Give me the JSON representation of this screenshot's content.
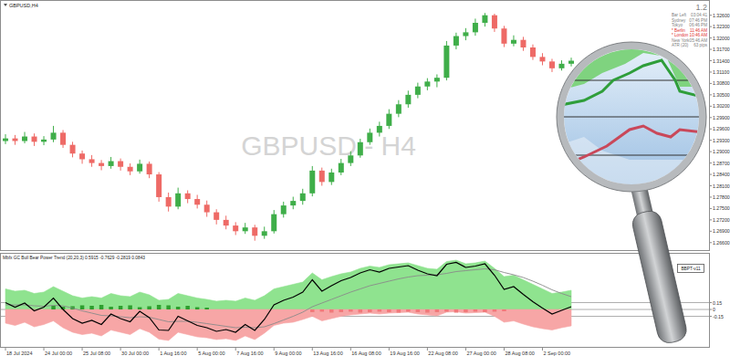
{
  "chart_data": [
    {
      "type": "candlestick",
      "title": "GBPUSD,H4",
      "subtitle": "GBPUSD - H4",
      "categories": [
        "18 Jul 2024",
        null,
        null,
        null,
        "24 Jul 00:00",
        null,
        null,
        null,
        "25 Jul 08:00",
        null,
        null,
        null,
        "30 Jul 00:00",
        null,
        null,
        null,
        "1 Aug 16:00",
        null,
        null,
        null,
        "5 Aug 00:00",
        null,
        null,
        null,
        "7 Aug 16:00",
        null,
        null,
        null,
        "9 Aug 00:00",
        null,
        null,
        null,
        "13 Aug 16:00",
        null,
        null,
        null,
        "16 Aug 08:00",
        null,
        null,
        null,
        "19 Aug 16:00",
        null,
        null,
        null,
        "22 Aug 08:00",
        null,
        null,
        null,
        "27 Aug 00:00",
        null,
        null,
        null,
        "28 Aug 08:00",
        null,
        null,
        null,
        "2 Sep 00:00",
        null,
        null,
        null
      ],
      "open": [
        1.2928,
        1.2935,
        1.2928,
        1.294,
        1.2926,
        1.2932,
        1.295,
        1.2918,
        1.2895,
        1.288,
        1.287,
        1.2862,
        1.2875,
        1.286,
        1.2848,
        1.2868,
        1.284,
        1.278,
        1.2755,
        1.279,
        1.2775,
        1.276,
        1.274,
        1.272,
        1.2705,
        1.269,
        1.27,
        1.2678,
        1.269,
        1.2735,
        1.2758,
        1.277,
        1.279,
        1.285,
        1.282,
        1.2845,
        1.287,
        1.289,
        1.2925,
        1.295,
        1.2968,
        1.3,
        1.3025,
        1.305,
        1.3072,
        1.3085,
        1.3095,
        1.318,
        1.3205,
        1.3215,
        1.324,
        1.326,
        1.3225,
        1.3185,
        1.3195,
        1.3175,
        1.315,
        1.3138,
        1.312,
        1.3132
      ],
      "high": [
        1.2946,
        1.2944,
        1.2952,
        1.2948,
        1.2941,
        1.2968,
        1.2957,
        1.2926,
        1.2903,
        1.2891,
        1.2878,
        1.2886,
        1.2882,
        1.2869,
        1.2879,
        1.2874,
        1.2846,
        1.2792,
        1.2805,
        1.2798,
        1.2786,
        1.2771,
        1.2748,
        1.2731,
        1.2714,
        1.2712,
        1.2707,
        1.2702,
        1.2746,
        1.2768,
        1.2781,
        1.2802,
        1.2862,
        1.2858,
        1.2855,
        1.2881,
        1.2901,
        1.2934,
        1.2961,
        1.2979,
        1.3012,
        1.3036,
        1.3061,
        1.3082,
        1.3094,
        1.3104,
        1.3192,
        1.3214,
        1.3226,
        1.3251,
        1.3266,
        1.3264,
        1.3232,
        1.3207,
        1.3203,
        1.3183,
        1.316,
        1.3145,
        1.3141,
        1.3148
      ],
      "low": [
        1.292,
        1.2918,
        1.2922,
        1.2915,
        1.2917,
        1.2925,
        1.291,
        1.2885,
        1.2868,
        1.286,
        1.2851,
        1.2855,
        1.285,
        1.2838,
        1.2842,
        1.283,
        1.2768,
        1.2742,
        1.2748,
        1.2764,
        1.275,
        1.2728,
        1.2708,
        1.2695,
        1.268,
        1.2683,
        1.2665,
        1.267,
        1.2684,
        1.2726,
        1.2748,
        1.276,
        1.2782,
        1.281,
        1.2812,
        1.2838,
        1.2862,
        1.2884,
        1.2918,
        1.294,
        1.296,
        1.2991,
        1.3016,
        1.3041,
        1.3062,
        1.307,
        1.3088,
        1.317,
        1.3194,
        1.3206,
        1.323,
        1.3216,
        1.3176,
        1.3178,
        1.3166,
        1.3142,
        1.3128,
        1.311,
        1.3114,
        1.3125
      ],
      "close": [
        1.2935,
        1.2928,
        1.294,
        1.2926,
        1.2932,
        1.295,
        1.2918,
        1.2895,
        1.288,
        1.287,
        1.2862,
        1.2875,
        1.286,
        1.2848,
        1.2868,
        1.284,
        1.278,
        1.2755,
        1.279,
        1.2775,
        1.276,
        1.274,
        1.272,
        1.2705,
        1.269,
        1.27,
        1.2678,
        1.269,
        1.2735,
        1.2758,
        1.277,
        1.279,
        1.285,
        1.282,
        1.2845,
        1.287,
        1.289,
        1.2925,
        1.295,
        1.2968,
        1.3,
        1.3025,
        1.305,
        1.3072,
        1.3085,
        1.3095,
        1.318,
        1.3205,
        1.3215,
        1.324,
        1.326,
        1.3225,
        1.3185,
        1.3195,
        1.3175,
        1.315,
        1.3138,
        1.312,
        1.3132,
        1.314
      ],
      "ylim": [
        1.2645,
        1.3293
      ],
      "yticks": [
        {
          "value": 1.266,
          "label": "1.26600"
        },
        {
          "value": 1.269,
          "label": "1.26900"
        },
        {
          "value": 1.272,
          "label": "1.27200"
        },
        {
          "value": 1.275,
          "label": "1.27500"
        },
        {
          "value": 1.278,
          "label": "1.27800"
        },
        {
          "value": 1.281,
          "label": "1.28100"
        },
        {
          "value": 1.284,
          "label": "1.28400"
        },
        {
          "value": 1.287,
          "label": "1.28700"
        },
        {
          "value": 1.29,
          "label": "1.29000"
        },
        {
          "value": 1.293,
          "label": "1.29300"
        },
        {
          "value": 1.296,
          "label": "1.29600"
        },
        {
          "value": 1.299,
          "label": "1.29900"
        },
        {
          "value": 1.302,
          "label": "1.30200"
        },
        {
          "value": 1.305,
          "label": "1.30500"
        },
        {
          "value": 1.308,
          "label": "1.30800"
        },
        {
          "value": 1.311,
          "label": "1.31100"
        },
        {
          "value": 1.314,
          "label": "1.31400"
        },
        {
          "value": 1.317,
          "label": "1.31700"
        },
        {
          "value": 1.32,
          "label": "1.32000"
        },
        {
          "value": 1.323,
          "label": "1.32300"
        },
        {
          "value": 1.326,
          "label": "1.32600"
        }
      ]
    },
    {
      "type": "line",
      "title": "Mbfx GC Bull Bear Power Trend (20,20,3) 0.5915 -0.7629 -0.2819 0.0843",
      "ylim": [
        -0.8,
        1.2
      ],
      "yticks": [
        -0.15,
        0,
        0.15
      ],
      "series": [
        {
          "type": "area",
          "color": "#8fe38f",
          "values": [
            0.45,
            0.4,
            0.42,
            0.35,
            0.38,
            0.5,
            0.4,
            0.3,
            0.25,
            0.28,
            0.25,
            0.35,
            0.3,
            0.28,
            0.38,
            0.32,
            0.2,
            0.22,
            0.35,
            0.3,
            0.25,
            0.22,
            0.18,
            0.2,
            0.18,
            0.25,
            0.2,
            0.3,
            0.45,
            0.5,
            0.55,
            0.6,
            0.8,
            0.65,
            0.72,
            0.78,
            0.82,
            0.9,
            0.95,
            0.92,
            0.98,
            1.0,
            1.02,
            0.96,
            0.9,
            0.88,
            1.05,
            1.08,
            1.0,
            1.02,
            1.06,
            0.9,
            0.72,
            0.75,
            0.65,
            0.55,
            0.45,
            0.35,
            0.38,
            0.42
          ]
        },
        {
          "type": "area",
          "color": "#f7a6a6",
          "values": [
            -0.3,
            -0.35,
            -0.28,
            -0.38,
            -0.33,
            -0.25,
            -0.4,
            -0.5,
            -0.55,
            -0.52,
            -0.58,
            -0.45,
            -0.5,
            -0.55,
            -0.42,
            -0.5,
            -0.65,
            -0.68,
            -0.5,
            -0.55,
            -0.6,
            -0.62,
            -0.66,
            -0.64,
            -0.68,
            -0.58,
            -0.66,
            -0.52,
            -0.35,
            -0.3,
            -0.28,
            -0.22,
            -0.15,
            -0.25,
            -0.2,
            -0.15,
            -0.12,
            -0.1,
            -0.08,
            -0.1,
            -0.08,
            -0.07,
            -0.06,
            -0.1,
            -0.12,
            -0.14,
            -0.06,
            -0.05,
            -0.08,
            -0.07,
            -0.06,
            -0.15,
            -0.28,
            -0.25,
            -0.32,
            -0.38,
            -0.42,
            -0.45,
            -0.4,
            -0.36
          ]
        },
        {
          "type": "bar",
          "values": [
            0,
            0,
            0,
            0,
            0,
            0.08,
            0.06,
            0.07,
            0.09,
            0.08,
            0.1,
            0.06,
            0.08,
            0.09,
            0.05,
            0.07,
            0.1,
            0.09,
            0.06,
            0.08,
            0.05,
            0.04,
            0,
            0,
            0,
            0,
            0,
            0,
            0,
            0,
            0,
            0,
            -0.06,
            -0.05,
            -0.07,
            -0.06,
            -0.05,
            -0.07,
            -0.06,
            -0.05,
            -0.06,
            -0.07,
            -0.05,
            -0.06,
            -0.07,
            -0.06,
            -0.05,
            -0.07,
            -0.06,
            -0.05,
            -0.06,
            -0.05,
            -0.04,
            0,
            0,
            0,
            0,
            0,
            0,
            0
          ]
        },
        {
          "type": "line",
          "color": "#8a8a8a",
          "values": [
            0.1,
            0.1,
            0.1,
            0.08,
            0.07,
            0.09,
            0.08,
            0.03,
            -0.03,
            -0.08,
            -0.13,
            -0.14,
            -0.16,
            -0.18,
            -0.16,
            -0.17,
            -0.22,
            -0.27,
            -0.26,
            -0.26,
            -0.28,
            -0.31,
            -0.34,
            -0.37,
            -0.4,
            -0.39,
            -0.4,
            -0.38,
            -0.31,
            -0.23,
            -0.15,
            -0.06,
            0.06,
            0.14,
            0.22,
            0.3,
            0.38,
            0.45,
            0.52,
            0.57,
            0.62,
            0.67,
            0.71,
            0.74,
            0.75,
            0.76,
            0.79,
            0.83,
            0.85,
            0.87,
            0.89,
            0.87,
            0.81,
            0.76,
            0.7,
            0.62,
            0.53,
            0.43,
            0.35,
            0.28
          ]
        },
        {
          "type": "line",
          "color": "#000000",
          "values": [
            0.15,
            0.05,
            0.14,
            -0.03,
            0.05,
            0.25,
            0.0,
            -0.2,
            -0.3,
            -0.24,
            -0.33,
            -0.1,
            -0.2,
            -0.27,
            -0.04,
            -0.18,
            -0.45,
            -0.46,
            -0.15,
            -0.25,
            -0.35,
            -0.4,
            -0.48,
            -0.44,
            -0.5,
            -0.33,
            -0.46,
            -0.22,
            0.1,
            0.2,
            0.27,
            0.38,
            0.65,
            0.4,
            0.52,
            0.63,
            0.7,
            0.8,
            0.87,
            0.82,
            0.9,
            0.93,
            0.96,
            0.86,
            0.78,
            0.74,
            0.99,
            1.03,
            0.92,
            0.95,
            1.0,
            0.75,
            0.44,
            0.5,
            0.33,
            0.17,
            0.03,
            -0.1,
            -0.02,
            0.06
          ]
        }
      ]
    }
  ],
  "info_panel": {
    "price": "1.2",
    "rows": [
      {
        "label": "Bar Left",
        "value": "03:04:41",
        "color": "#808080"
      },
      {
        "label": "Sydney",
        "value": "07:46 PM",
        "color": "#808080"
      },
      {
        "label": "Tokyo",
        "value": "06:46 PM",
        "color": "#808080"
      },
      {
        "label": "* Berlin",
        "value": "11:46 AM",
        "color": "#e03030"
      },
      {
        "label": "* London",
        "value": "10:46 AM",
        "color": "#e03030"
      },
      {
        "label": "New York",
        "value": "05:46 AM",
        "color": "#808080"
      },
      {
        "label": "ATR (20)",
        "value": "63 pips",
        "color": "#808080"
      }
    ]
  },
  "button": "BBPT-v11"
}
